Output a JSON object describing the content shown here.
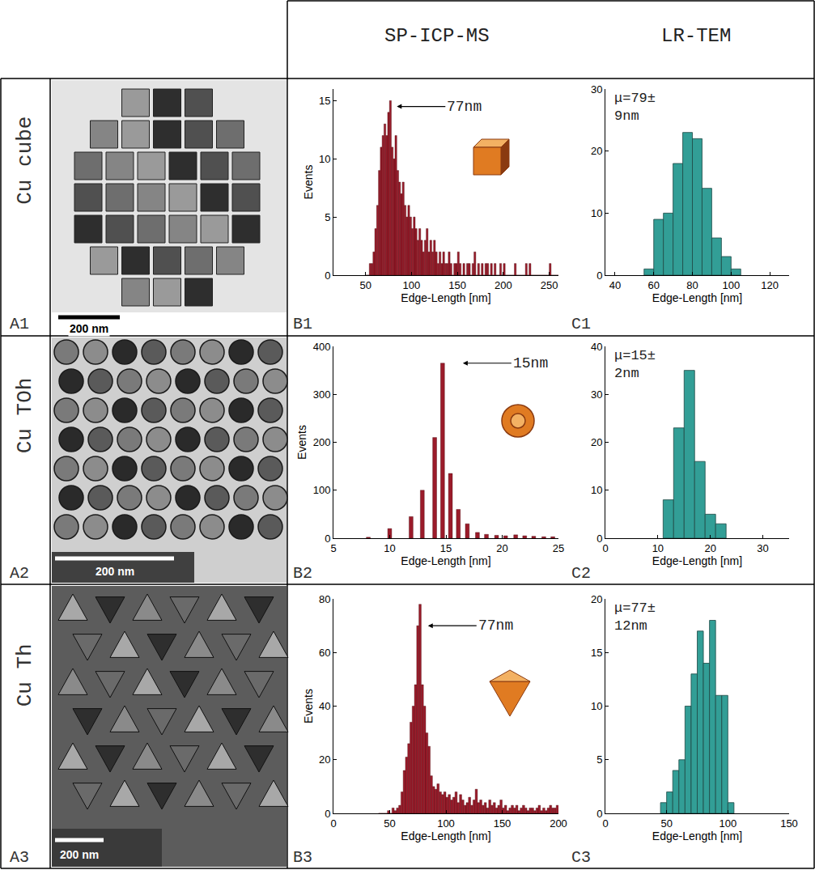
{
  "header": {
    "columns": [
      "SP-ICP-MS",
      "LR-TEM"
    ]
  },
  "rows": [
    {
      "label": "Cu cube",
      "panel": "A1",
      "scale_bar": "200 nm"
    },
    {
      "label": "Cu TOh",
      "panel": "A2",
      "scale_bar": "200 nm"
    },
    {
      "label": "Cu Th",
      "panel": "A3",
      "scale_bar": "200 nm"
    }
  ],
  "chart_data": [
    {
      "panel": "B1",
      "type": "histogram",
      "x_label": "Edge-Length [nm]",
      "y_label": "Events",
      "color": "#9b1b2a",
      "grid": false,
      "bins": [
        50,
        52,
        54,
        56,
        58,
        60,
        62,
        64,
        66,
        68,
        70,
        72,
        74,
        76,
        78,
        80,
        82,
        84,
        86,
        88,
        90,
        92,
        94,
        96,
        98,
        100,
        102,
        104,
        106,
        108,
        110,
        112,
        114,
        116,
        118,
        120,
        122,
        124,
        126,
        128,
        130,
        132,
        134,
        136,
        138,
        140,
        142,
        144,
        146,
        148,
        150,
        152,
        154,
        156,
        158,
        160,
        162,
        164,
        166,
        168,
        170,
        172,
        174,
        176,
        178,
        180,
        182,
        184,
        186,
        188,
        190,
        192,
        194,
        196,
        198,
        200,
        202,
        204,
        206,
        208,
        210,
        212,
        214,
        216,
        218,
        220,
        222,
        224,
        226,
        228,
        230,
        232,
        234,
        236,
        238,
        240,
        242,
        244,
        246,
        248,
        250,
        252,
        254,
        256,
        258,
        260
      ],
      "counts": [
        0,
        0,
        1,
        1,
        2,
        4,
        6,
        9,
        11,
        12,
        13,
        12,
        14,
        15,
        11,
        10,
        12,
        9,
        8,
        7,
        8,
        6,
        5,
        6,
        5,
        4,
        5,
        4,
        3,
        4,
        3,
        2,
        3,
        4,
        2,
        3,
        2,
        3,
        2,
        1,
        2,
        1,
        2,
        1,
        1,
        2,
        1,
        0,
        1,
        1,
        2,
        1,
        0,
        1,
        0,
        1,
        1,
        0,
        1,
        2,
        0,
        1,
        0,
        1,
        0,
        1,
        1,
        0,
        1,
        0,
        1,
        0,
        0,
        1,
        0,
        1,
        0,
        0,
        0,
        0,
        0,
        1,
        0,
        0,
        0,
        0,
        0,
        1,
        0,
        1,
        0,
        0,
        0,
        0,
        0,
        0,
        0,
        0,
        0,
        0,
        1,
        0,
        0,
        0,
        0
      ],
      "xlim": [
        15,
        260
      ],
      "xticks": [
        50,
        100,
        150,
        200,
        250
      ],
      "ylim": [
        0,
        16
      ],
      "yticks": [
        0,
        5,
        10,
        15
      ],
      "annotations": [
        {
          "text": "77nm",
          "x": 84,
          "y": 14.5
        }
      ]
    },
    {
      "panel": "C1",
      "type": "histogram",
      "x_label": "Edge-Length [nm]",
      "color": "#329e96",
      "grid": false,
      "bins": [
        55,
        60,
        65,
        70,
        75,
        80,
        85,
        90,
        95,
        100,
        105
      ],
      "counts": [
        1,
        9,
        10,
        18,
        23,
        22,
        14,
        6,
        3,
        1
      ],
      "xlim": [
        35,
        130
      ],
      "xticks": [
        40,
        60,
        80,
        100,
        120
      ],
      "ylim": [
        0,
        30
      ],
      "yticks": [
        0,
        10,
        20,
        30
      ],
      "annotations": [
        {
          "text": "μ=79±9nm"
        }
      ]
    },
    {
      "panel": "B2",
      "type": "bar",
      "x_label": "Edge-Length [nm]",
      "y_label": "Events",
      "color": "#9b1b2a",
      "grid": false,
      "x": [
        8.1,
        10,
        11.9,
        12.9,
        14,
        14.7,
        15.4,
        16.1,
        16.9,
        17.8,
        18.6,
        19.5,
        20.3,
        21.2,
        22,
        22.8,
        23.7,
        24.5
      ],
      "values": [
        2,
        20,
        45,
        100,
        210,
        365,
        135,
        60,
        30,
        12,
        8,
        6,
        5,
        7,
        5,
        4,
        3,
        3
      ],
      "xlim": [
        5,
        25
      ],
      "xticks": [
        5,
        10,
        15,
        20,
        25
      ],
      "ylim": [
        0,
        400
      ],
      "yticks": [
        0,
        100,
        200,
        300,
        400
      ],
      "annotations": [
        {
          "text": "15nm",
          "x": 16.5,
          "y": 365
        }
      ]
    },
    {
      "panel": "C2",
      "type": "histogram",
      "x_label": "Edge-Length [nm]",
      "color": "#329e96",
      "grid": false,
      "bins": [
        11,
        13,
        15,
        17,
        19,
        21,
        23
      ],
      "counts": [
        8,
        23,
        35,
        16,
        5,
        3
      ],
      "xlim": [
        0,
        35
      ],
      "xticks": [
        0,
        10,
        20,
        30
      ],
      "ylim": [
        0,
        40
      ],
      "yticks": [
        0,
        10,
        20,
        30,
        40
      ],
      "annotations": [
        {
          "text": "μ=15±2nm"
        }
      ]
    },
    {
      "panel": "B3",
      "type": "histogram",
      "x_label": "Edge-Length [nm]",
      "y_label": "Events",
      "color": "#9b1b2a",
      "grid": false,
      "bins": [
        40,
        42,
        44,
        46,
        48,
        50,
        52,
        54,
        56,
        58,
        60,
        62,
        64,
        66,
        68,
        70,
        72,
        74,
        76,
        78,
        80,
        82,
        84,
        86,
        88,
        90,
        92,
        94,
        96,
        98,
        100,
        102,
        104,
        106,
        108,
        110,
        112,
        114,
        116,
        118,
        120,
        122,
        124,
        126,
        128,
        130,
        132,
        134,
        136,
        138,
        140,
        142,
        144,
        146,
        148,
        150,
        152,
        154,
        156,
        158,
        160,
        162,
        164,
        166,
        168,
        170,
        172,
        174,
        176,
        178,
        180,
        182,
        184,
        186,
        188,
        190,
        192,
        194,
        196,
        198,
        200
      ],
      "counts": [
        0,
        0,
        0,
        0,
        1,
        0,
        2,
        1,
        2,
        3,
        8,
        16,
        21,
        26,
        34,
        40,
        48,
        70,
        78,
        48,
        40,
        30,
        25,
        14,
        10,
        9,
        11,
        8,
        7,
        8,
        6,
        7,
        5,
        6,
        8,
        4,
        7,
        5,
        3,
        4,
        6,
        3,
        5,
        9,
        4,
        5,
        3,
        4,
        2,
        5,
        3,
        4,
        2,
        3,
        5,
        2,
        3,
        1,
        2,
        3,
        2,
        3,
        1,
        2,
        3,
        2,
        1,
        2,
        2,
        1,
        2,
        3,
        1,
        2,
        1,
        2,
        3,
        2,
        2,
        3
      ],
      "xlim": [
        0,
        200
      ],
      "xticks": [
        0,
        50,
        100,
        150,
        200
      ],
      "ylim": [
        0,
        80
      ],
      "yticks": [
        0,
        20,
        40,
        60,
        80
      ],
      "annotations": [
        {
          "text": "77nm",
          "x": 84,
          "y": 70
        }
      ]
    },
    {
      "panel": "C3",
      "type": "histogram",
      "x_label": "Edge-Length [nm]",
      "color": "#329e96",
      "grid": false,
      "bins": [
        45,
        50,
        55,
        60,
        65,
        70,
        75,
        80,
        85,
        90,
        95,
        100,
        105
      ],
      "counts": [
        1,
        2,
        4,
        5,
        10,
        13,
        17,
        14,
        18,
        11,
        11,
        1
      ],
      "xlim": [
        0,
        150
      ],
      "xticks": [
        0,
        50,
        100,
        150
      ],
      "ylim": [
        0,
        20
      ],
      "yticks": [
        0,
        5,
        10,
        15,
        20
      ],
      "annotations": [
        {
          "text": "μ=77±12nm"
        }
      ]
    }
  ]
}
